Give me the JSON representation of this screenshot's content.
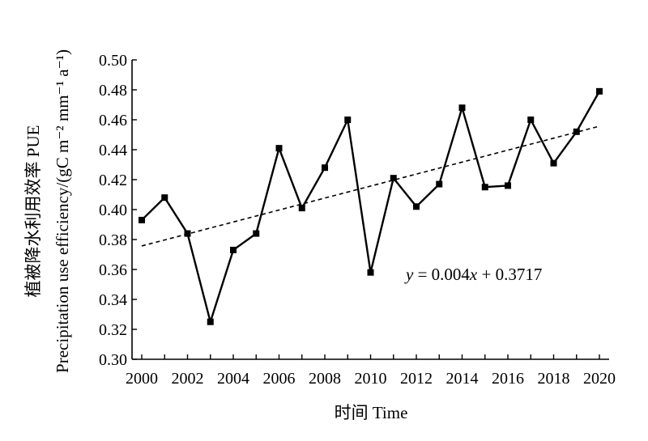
{
  "chart_data": {
    "type": "line",
    "title": "",
    "xlabel": "时间 Time",
    "ylabel_line1": "植被降水利用效率 PUE",
    "ylabel_line2": "Precipitation use efficiency/(gC m⁻² mm⁻¹ a⁻¹)",
    "x": [
      2000,
      2001,
      2002,
      2003,
      2004,
      2005,
      2006,
      2007,
      2008,
      2009,
      2010,
      2011,
      2012,
      2013,
      2014,
      2015,
      2016,
      2017,
      2018,
      2019,
      2020
    ],
    "series": [
      {
        "values": [
          0.393,
          0.408,
          0.384,
          0.325,
          0.373,
          0.384,
          0.441,
          0.401,
          0.428,
          0.46,
          0.358,
          0.421,
          0.402,
          0.417,
          0.468,
          0.415,
          0.416,
          0.46,
          0.431,
          0.452,
          0.479
        ]
      }
    ],
    "trendline": {
      "slope": 0.004,
      "intercept": 0.3717,
      "style": "dashed",
      "label_parts": [
        "y",
        " = 0.004",
        "x",
        " + 0.3717"
      ]
    },
    "xlim": [
      2000,
      2020
    ],
    "ylim": [
      0.3,
      0.5
    ],
    "xticks": [
      "2000",
      "2002",
      "2004",
      "2006",
      "2008",
      "2010",
      "2012",
      "2014",
      "2016",
      "2018",
      "2020"
    ],
    "yticks": [
      "0.30",
      "0.32",
      "0.34",
      "0.36",
      "0.38",
      "0.40",
      "0.42",
      "0.44",
      "0.46",
      "0.48",
      "0.50"
    ],
    "grid": false,
    "colors": {
      "line": "#000000",
      "marker": "#000000",
      "trend": "#000000"
    }
  }
}
